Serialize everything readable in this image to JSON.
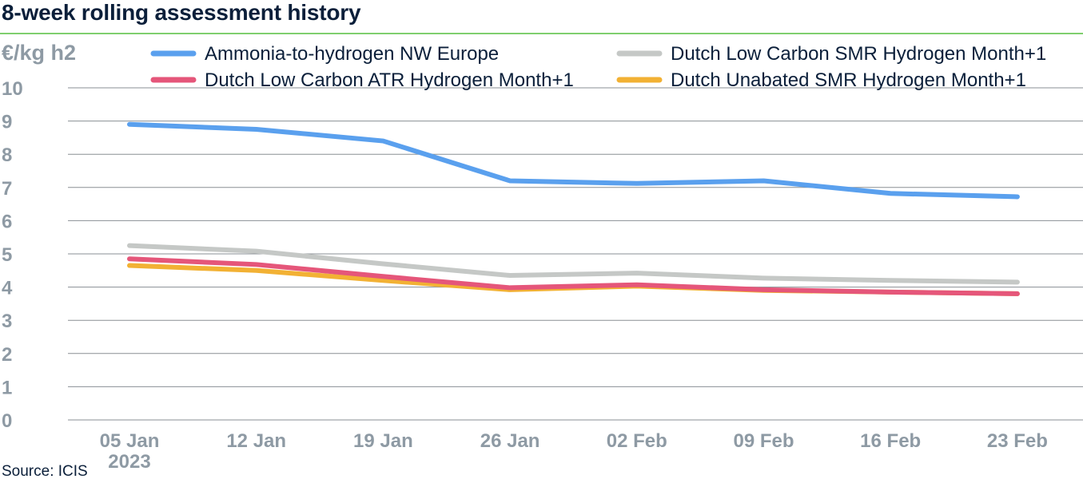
{
  "header": {
    "title": "8-week rolling assessment history",
    "source": "Source: ICIS"
  },
  "chart_data": {
    "type": "line",
    "title": "8-week rolling assessment history",
    "ylabel": "€/kg h2",
    "xlabel": "",
    "ylim": [
      0,
      10
    ],
    "y_ticks": [
      "0",
      "1",
      "2",
      "3",
      "4",
      "5",
      "6",
      "7",
      "8",
      "9",
      "10"
    ],
    "grid": true,
    "legend_position": "top",
    "categories": [
      "05 Jan",
      "12 Jan",
      "19 Jan",
      "26 Jan",
      "02 Feb",
      "09 Feb",
      "16 Feb",
      "23 Feb"
    ],
    "x_year_label": "2023",
    "series": [
      {
        "name": "Ammonia-to-hydrogen NW Europe",
        "color": "#5aa0ee",
        "values": [
          8.9,
          8.75,
          8.4,
          7.2,
          7.12,
          7.2,
          6.82,
          6.72
        ]
      },
      {
        "name": "Dutch Low Carbon SMR Hydrogen Month+1",
        "color": "#c5c8c6",
        "values": [
          5.25,
          5.08,
          4.7,
          4.35,
          4.42,
          4.27,
          4.2,
          4.15
        ]
      },
      {
        "name": "Dutch Unabated SMR Hydrogen Month+1",
        "color": "#f2b134",
        "values": [
          4.65,
          4.5,
          4.2,
          3.92,
          4.03,
          3.9,
          3.85,
          3.8
        ]
      },
      {
        "name": "Dutch Low Carbon ATR Hydrogen Month+1",
        "color": "#e5567a",
        "values": [
          4.85,
          4.68,
          4.32,
          3.98,
          4.07,
          3.92,
          3.85,
          3.8
        ]
      }
    ]
  }
}
